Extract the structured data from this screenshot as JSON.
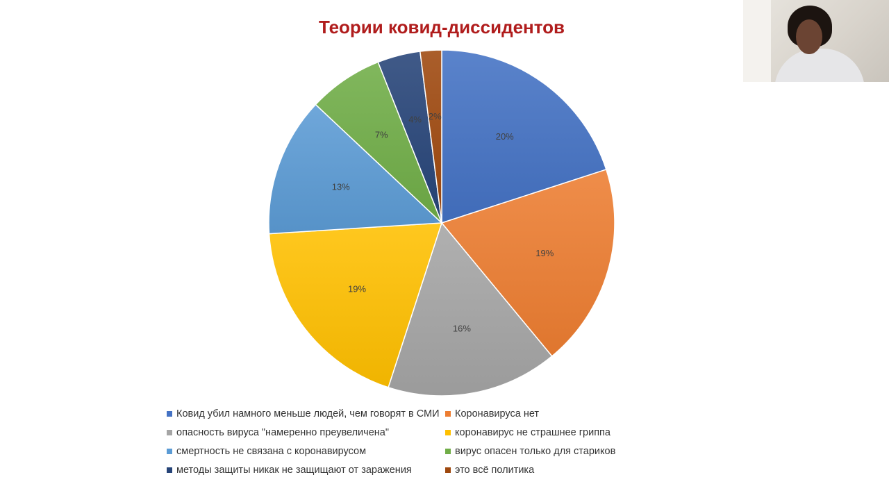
{
  "chart_data": {
    "type": "pie",
    "title": "Теории ковид-диссидентов",
    "legend_position": "bottom",
    "slices": [
      {
        "label": "Ковид убил намного меньше людей, чем говорят в СМИ",
        "value": 20,
        "value_label": "20%",
        "color": "#4472c4"
      },
      {
        "label": "Коронавируса нет",
        "value": 19,
        "value_label": "19%",
        "color": "#ed7d31"
      },
      {
        "label": "опасность вируса \"намеренно преувеличена\"",
        "value": 16,
        "value_label": "16%",
        "color": "#a5a5a5"
      },
      {
        "label": "коронавирус не страшнее гриппа",
        "value": 19,
        "value_label": "19%",
        "color": "#ffc000"
      },
      {
        "label": "смертность не связана с коронавирусом",
        "value": 13,
        "value_label": "13%",
        "color": "#5b9bd5"
      },
      {
        "label": "вирус опасен только для стариков",
        "value": 7,
        "value_label": "7%",
        "color": "#70ad47"
      },
      {
        "label": "методы защиты никак не защищают от заражения",
        "value": 4,
        "value_label": "4%",
        "color": "#264478"
      },
      {
        "label": "это всё политика",
        "value": 2,
        "value_label": "2%",
        "color": "#9e480e"
      }
    ]
  },
  "webcam": {
    "icon": "webcam-video-feed"
  }
}
